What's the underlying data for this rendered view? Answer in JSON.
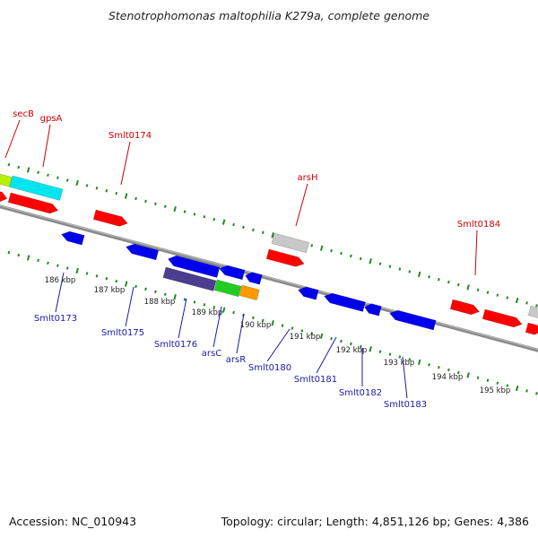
{
  "title": "Stenotrophomonas maltophilia K279a, complete genome",
  "footer": {
    "accession": "Accession: NC_010943",
    "summary": "Topology: circular; Length: 4,851,126 bp; Genes: 4,386"
  },
  "colors": {
    "forward_label": "#cc0000",
    "reverse_label": "#1a1aaa",
    "forward_gene": "#ff0000",
    "reverse_gene": "#0000ee",
    "backbone": "#888888",
    "tick": "#228b22"
  },
  "upper_labels": [
    {
      "id": "secB",
      "text": "secB"
    },
    {
      "id": "gpsA",
      "text": "gpsA"
    },
    {
      "id": "smlt0174",
      "text": "Smlt0174"
    },
    {
      "id": "arsH",
      "text": "arsH"
    },
    {
      "id": "smlt0184",
      "text": "Smlt0184"
    }
  ],
  "lower_labels": [
    {
      "id": "smlt0173",
      "text": "Smlt0173"
    },
    {
      "id": "smlt0175",
      "text": "Smlt0175"
    },
    {
      "id": "smlt0176",
      "text": "Smlt0176"
    },
    {
      "id": "arsC",
      "text": "arsC"
    },
    {
      "id": "arsR",
      "text": "arsR"
    },
    {
      "id": "smlt0180",
      "text": "Smlt0180"
    },
    {
      "id": "smlt0181",
      "text": "Smlt0181"
    },
    {
      "id": "smlt0182",
      "text": "Smlt0182"
    },
    {
      "id": "smlt0183",
      "text": "Smlt0183"
    }
  ],
  "scale_ticks": [
    "186 kbp",
    "187 kbp",
    "188 kbp",
    "189 kbp",
    "190 kbp",
    "191 kbp",
    "192 kbp",
    "193 kbp",
    "194 kbp",
    "195 kbp"
  ]
}
